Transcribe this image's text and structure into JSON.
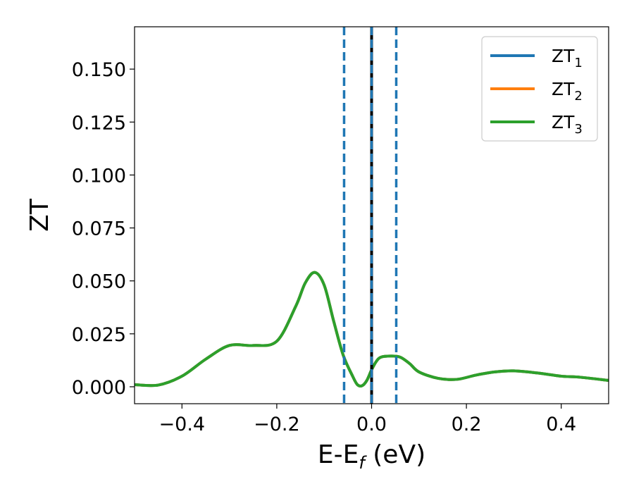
{
  "chart_data": {
    "type": "line",
    "xlabel": "E-E",
    "xlabel_sub": "f",
    "xlabel_unit": " (eV)",
    "ylabel": "ZT",
    "xlim": [
      -0.5,
      0.5
    ],
    "ylim": [
      -0.008,
      0.17
    ],
    "x_ticks": [
      -0.4,
      -0.2,
      0.0,
      0.2,
      0.4
    ],
    "x_tick_labels": [
      "−0.4",
      "−0.2",
      "0.0",
      "0.2",
      "0.4"
    ],
    "y_ticks": [
      0.0,
      0.025,
      0.05,
      0.075,
      0.1,
      0.125,
      0.15
    ],
    "y_tick_labels": [
      "0.000",
      "0.025",
      "0.050",
      "0.075",
      "0.100",
      "0.125",
      "0.150"
    ],
    "grid": false,
    "legend_position": "top-right",
    "series": [
      {
        "name": "ZT",
        "name_sub": "1",
        "color": "#1f77b4",
        "x": [
          -0.5,
          -0.45,
          -0.4,
          -0.35,
          -0.3,
          -0.25,
          -0.2,
          -0.16,
          -0.14,
          -0.12,
          -0.1,
          -0.08,
          -0.06,
          -0.04,
          -0.03,
          -0.02,
          -0.01,
          0.0,
          0.01,
          0.02,
          0.04,
          0.06,
          0.08,
          0.1,
          0.14,
          0.18,
          0.22,
          0.26,
          0.3,
          0.35,
          0.4,
          0.44,
          0.5
        ],
        "y": [
          0.001,
          0.0008,
          0.005,
          0.013,
          0.0195,
          0.0195,
          0.0215,
          0.038,
          0.049,
          0.054,
          0.048,
          0.031,
          0.015,
          0.005,
          0.001,
          0.0005,
          0.003,
          0.008,
          0.012,
          0.014,
          0.0145,
          0.014,
          0.011,
          0.007,
          0.004,
          0.0035,
          0.0055,
          0.007,
          0.0075,
          0.0065,
          0.005,
          0.0045,
          0.003
        ]
      },
      {
        "name": "ZT",
        "name_sub": "2",
        "color": "#ff7f0e",
        "x": [
          -0.5,
          -0.45,
          -0.4,
          -0.35,
          -0.3,
          -0.25,
          -0.2,
          -0.16,
          -0.14,
          -0.12,
          -0.1,
          -0.08,
          -0.06,
          -0.04,
          -0.03,
          -0.02,
          -0.01,
          0.0,
          0.01,
          0.02,
          0.04,
          0.06,
          0.08,
          0.1,
          0.14,
          0.18,
          0.22,
          0.26,
          0.3,
          0.35,
          0.4,
          0.44,
          0.5
        ],
        "y": [
          0.001,
          0.0008,
          0.005,
          0.013,
          0.0195,
          0.0195,
          0.0215,
          0.038,
          0.049,
          0.054,
          0.048,
          0.031,
          0.015,
          0.005,
          0.001,
          0.0005,
          0.003,
          0.008,
          0.012,
          0.014,
          0.0145,
          0.014,
          0.011,
          0.007,
          0.004,
          0.0035,
          0.0055,
          0.007,
          0.0075,
          0.0065,
          0.005,
          0.0045,
          0.003
        ]
      },
      {
        "name": "ZT",
        "name_sub": "3",
        "color": "#2ca02c",
        "x": [
          -0.5,
          -0.45,
          -0.4,
          -0.35,
          -0.3,
          -0.25,
          -0.2,
          -0.16,
          -0.14,
          -0.12,
          -0.1,
          -0.08,
          -0.06,
          -0.04,
          -0.03,
          -0.02,
          -0.01,
          0.0,
          0.01,
          0.02,
          0.04,
          0.06,
          0.08,
          0.1,
          0.14,
          0.18,
          0.22,
          0.26,
          0.3,
          0.35,
          0.4,
          0.44,
          0.5
        ],
        "y": [
          0.001,
          0.0008,
          0.005,
          0.013,
          0.0195,
          0.0195,
          0.0215,
          0.038,
          0.049,
          0.054,
          0.048,
          0.031,
          0.015,
          0.005,
          0.001,
          0.0005,
          0.003,
          0.008,
          0.012,
          0.014,
          0.0145,
          0.014,
          0.011,
          0.007,
          0.004,
          0.0035,
          0.0055,
          0.007,
          0.0075,
          0.0065,
          0.005,
          0.0045,
          0.003
        ]
      }
    ],
    "vlines": [
      {
        "x": -0.058,
        "style": "dashed",
        "color": "#1f77b4"
      },
      {
        "x": 0.052,
        "style": "dashed",
        "color": "#1f77b4"
      },
      {
        "x": 0.0,
        "style": "solid",
        "color": "#000000"
      },
      {
        "x": 0.0,
        "style": "dashed",
        "color": "#1f77b4"
      }
    ]
  }
}
